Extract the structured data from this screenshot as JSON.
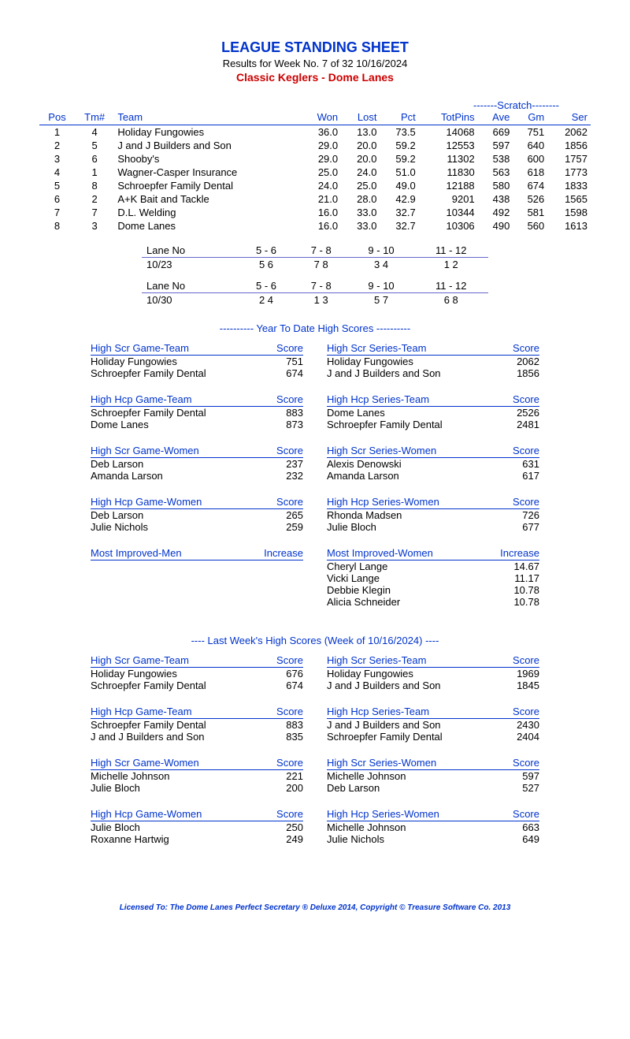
{
  "header": {
    "title": "LEAGUE STANDING SHEET",
    "subtitle": "Results for Week No. 7 of 32    10/16/2024",
    "league": "Classic Keglers - Dome Lanes"
  },
  "scratch_label": "-------Scratch--------",
  "standings": {
    "columns": [
      "Pos",
      "Tm#",
      "Team",
      "Won",
      "Lost",
      "Pct",
      "TotPins",
      "Ave",
      "Gm",
      "Ser"
    ],
    "rows": [
      [
        "1",
        "4",
        "Holiday Fungowies",
        "36.0",
        "13.0",
        "73.5",
        "14068",
        "669",
        "751",
        "2062"
      ],
      [
        "2",
        "5",
        "J and J Builders and Son",
        "29.0",
        "20.0",
        "59.2",
        "12553",
        "597",
        "640",
        "1856"
      ],
      [
        "3",
        "6",
        "Shooby's",
        "29.0",
        "20.0",
        "59.2",
        "11302",
        "538",
        "600",
        "1757"
      ],
      [
        "4",
        "1",
        "Wagner-Casper Insurance",
        "25.0",
        "24.0",
        "51.0",
        "11830",
        "563",
        "618",
        "1773"
      ],
      [
        "5",
        "8",
        "Schroepfer Family Dental",
        "24.0",
        "25.0",
        "49.0",
        "12188",
        "580",
        "674",
        "1833"
      ],
      [
        "6",
        "2",
        "A+K Bait and Tackle",
        "21.0",
        "28.0",
        "42.9",
        "9201",
        "438",
        "526",
        "1565"
      ],
      [
        "7",
        "7",
        "D.L. Welding",
        "16.0",
        "33.0",
        "32.7",
        "10344",
        "492",
        "581",
        "1598"
      ],
      [
        "8",
        "3",
        "Dome Lanes",
        "16.0",
        "33.0",
        "32.7",
        "10306",
        "490",
        "560",
        "1613"
      ]
    ]
  },
  "lane_schedule": [
    {
      "label_row": [
        "Lane No",
        "5 - 6",
        "7 - 8",
        "9 - 10",
        "11 - 12"
      ],
      "data_row": [
        "10/23",
        "5   6",
        "7   8",
        "3   4",
        "1   2"
      ]
    },
    {
      "label_row": [
        "Lane No",
        "5 - 6",
        "7 - 8",
        "9 - 10",
        "11 - 12"
      ],
      "data_row": [
        "10/30",
        "2   4",
        "1   3",
        "5   7",
        "6   8"
      ]
    }
  ],
  "ytd_title": "----------  Year To Date High Scores  ----------",
  "ytd_blocks": [
    {
      "title": "High Scr Game-Team",
      "score_label": "Score",
      "rows": [
        [
          "Holiday Fungowies",
          "751"
        ],
        [
          "Schroepfer Family Dental",
          "674"
        ]
      ]
    },
    {
      "title": "High Scr Series-Team",
      "score_label": "Score",
      "rows": [
        [
          "Holiday Fungowies",
          "2062"
        ],
        [
          "J and J Builders and Son",
          "1856"
        ]
      ]
    },
    {
      "title": "High Hcp Game-Team",
      "score_label": "Score",
      "rows": [
        [
          "Schroepfer Family Dental",
          "883"
        ],
        [
          "Dome Lanes",
          "873"
        ]
      ]
    },
    {
      "title": "High Hcp Series-Team",
      "score_label": "Score",
      "rows": [
        [
          "Dome Lanes",
          "2526"
        ],
        [
          "Schroepfer Family Dental",
          "2481"
        ]
      ]
    },
    {
      "title": "High Scr Game-Women",
      "score_label": "Score",
      "rows": [
        [
          "Deb Larson",
          "237"
        ],
        [
          "Amanda Larson",
          "232"
        ]
      ]
    },
    {
      "title": "High Scr Series-Women",
      "score_label": "Score",
      "rows": [
        [
          "Alexis Denowski",
          "631"
        ],
        [
          "Amanda Larson",
          "617"
        ]
      ]
    },
    {
      "title": "High Hcp Game-Women",
      "score_label": "Score",
      "rows": [
        [
          "Deb Larson",
          "265"
        ],
        [
          "Julie Nichols",
          "259"
        ]
      ]
    },
    {
      "title": "High Hcp Series-Women",
      "score_label": "Score",
      "rows": [
        [
          "Rhonda Madsen",
          "726"
        ],
        [
          "Julie Bloch",
          "677"
        ]
      ]
    },
    {
      "title": "Most Improved-Men",
      "score_label": "Increase",
      "rows": []
    },
    {
      "title": "Most Improved-Women",
      "score_label": "Increase",
      "rows": [
        [
          "Cheryl Lange",
          "14.67"
        ],
        [
          "Vicki Lange",
          "11.17"
        ],
        [
          "Debbie Klegin",
          "10.78"
        ],
        [
          "Alicia Schneider",
          "10.78"
        ]
      ]
    }
  ],
  "lw_title": "----   Last Week's High Scores   (Week of 10/16/2024)   ----",
  "lw_blocks": [
    {
      "title": "High Scr Game-Team",
      "score_label": "Score",
      "rows": [
        [
          "Holiday Fungowies",
          "676"
        ],
        [
          "Schroepfer Family Dental",
          "674"
        ]
      ]
    },
    {
      "title": "High Scr Series-Team",
      "score_label": "Score",
      "rows": [
        [
          "Holiday Fungowies",
          "1969"
        ],
        [
          "J and J Builders and Son",
          "1845"
        ]
      ]
    },
    {
      "title": "High Hcp Game-Team",
      "score_label": "Score",
      "rows": [
        [
          "Schroepfer Family Dental",
          "883"
        ],
        [
          "J and J Builders and Son",
          "835"
        ]
      ]
    },
    {
      "title": "High Hcp Series-Team",
      "score_label": "Score",
      "rows": [
        [
          "J and J Builders and Son",
          "2430"
        ],
        [
          "Schroepfer Family Dental",
          "2404"
        ]
      ]
    },
    {
      "title": "High Scr Game-Women",
      "score_label": "Score",
      "rows": [
        [
          "Michelle Johnson",
          "221"
        ],
        [
          "Julie Bloch",
          "200"
        ]
      ]
    },
    {
      "title": "High Scr Series-Women",
      "score_label": "Score",
      "rows": [
        [
          "Michelle Johnson",
          "597"
        ],
        [
          "Deb Larson",
          "527"
        ]
      ]
    },
    {
      "title": "High Hcp Game-Women",
      "score_label": "Score",
      "rows": [
        [
          "Julie Bloch",
          "250"
        ],
        [
          "Roxanne Hartwig",
          "249"
        ]
      ]
    },
    {
      "title": "High Hcp Series-Women",
      "score_label": "Score",
      "rows": [
        [
          "Michelle Johnson",
          "663"
        ],
        [
          "Julie Nichols",
          "649"
        ]
      ]
    }
  ],
  "footer": "Licensed To: The Dome Lanes     Perfect Secretary ® Deluxe  2014, Copyright © Treasure Software Co. 2013",
  "colors": {
    "blue": "#0033cc",
    "red": "#cc0000",
    "underline": "#6666cc",
    "text": "#000000",
    "background": "#ffffff"
  }
}
